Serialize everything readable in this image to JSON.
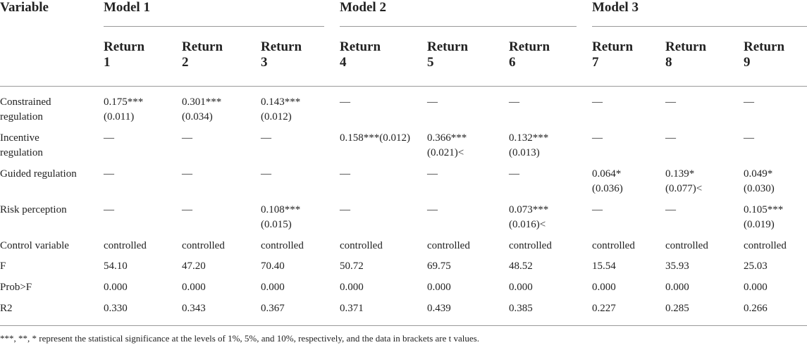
{
  "header": {
    "variable": "Variable",
    "models": [
      "Model 1",
      "Model 2",
      "Model 3"
    ],
    "columns": [
      [
        "Return",
        "1"
      ],
      [
        "Return",
        "2"
      ],
      [
        "Return",
        "3"
      ],
      [
        "Return",
        "4"
      ],
      [
        "Return",
        "5"
      ],
      [
        "Return",
        "6"
      ],
      [
        "Return",
        "7"
      ],
      [
        "Return",
        "8"
      ],
      [
        "Return",
        "9"
      ]
    ]
  },
  "rows": [
    {
      "label": [
        "Constrained",
        "regulation"
      ],
      "cells": [
        [
          "0.175***",
          "(0.011)"
        ],
        [
          "0.301***",
          "(0.034)"
        ],
        [
          "0.143***",
          "(0.012)"
        ],
        [
          "—"
        ],
        [
          "—"
        ],
        [
          "—"
        ],
        [
          "—"
        ],
        [
          "—"
        ],
        [
          "—"
        ]
      ]
    },
    {
      "label": [
        "Incentive",
        "regulation"
      ],
      "cells": [
        [
          "—"
        ],
        [
          "—"
        ],
        [
          "—"
        ],
        [
          "0.158***(0.012)"
        ],
        [
          "0.366***",
          "(0.021)<"
        ],
        [
          "0.132***",
          "(0.013)"
        ],
        [
          "—"
        ],
        [
          "—"
        ],
        [
          "—"
        ]
      ]
    },
    {
      "label": [
        "Guided regulation"
      ],
      "cells": [
        [
          "—"
        ],
        [
          "—"
        ],
        [
          "—"
        ],
        [
          "—"
        ],
        [
          "—"
        ],
        [
          "—"
        ],
        [
          "0.064*",
          "(0.036)"
        ],
        [
          "0.139*",
          "(0.077)<"
        ],
        [
          "0.049*",
          "(0.030)"
        ]
      ]
    },
    {
      "label": [
        "Risk perception"
      ],
      "cells": [
        [
          "—"
        ],
        [
          "—"
        ],
        [
          "0.108***",
          "(0.015)"
        ],
        [
          "—"
        ],
        [
          "—"
        ],
        [
          "0.073***",
          "(0.016)<"
        ],
        [
          "—"
        ],
        [
          "—"
        ],
        [
          "0.105***",
          "(0.019)"
        ]
      ]
    },
    {
      "label": [
        "Control variable"
      ],
      "cells": [
        [
          "controlled"
        ],
        [
          "controlled"
        ],
        [
          "controlled"
        ],
        [
          "controlled"
        ],
        [
          "controlled"
        ],
        [
          "controlled"
        ],
        [
          "controlled"
        ],
        [
          "controlled"
        ],
        [
          "controlled"
        ]
      ]
    },
    {
      "label": [
        "F"
      ],
      "cells": [
        [
          "54.10"
        ],
        [
          "47.20"
        ],
        [
          "70.40"
        ],
        [
          "50.72"
        ],
        [
          "69.75"
        ],
        [
          "48.52"
        ],
        [
          "15.54"
        ],
        [
          "35.93"
        ],
        [
          "25.03"
        ]
      ]
    },
    {
      "label": [
        "Prob>F"
      ],
      "cells": [
        [
          "0.000"
        ],
        [
          "0.000"
        ],
        [
          "0.000"
        ],
        [
          "0.000"
        ],
        [
          "0.000"
        ],
        [
          "0.000"
        ],
        [
          "0.000"
        ],
        [
          "0.000"
        ],
        [
          "0.000"
        ]
      ]
    },
    {
      "label": [
        "R2"
      ],
      "cells": [
        [
          "0.330"
        ],
        [
          "0.343"
        ],
        [
          "0.367"
        ],
        [
          "0.371"
        ],
        [
          "0.439"
        ],
        [
          "0.385"
        ],
        [
          "0.227"
        ],
        [
          "0.285"
        ],
        [
          "0.266"
        ]
      ]
    }
  ],
  "footnote": "***, **, * represent the statistical significance at the levels of 1%, 5%, and 10%, respectively, and the data in brackets are t values."
}
